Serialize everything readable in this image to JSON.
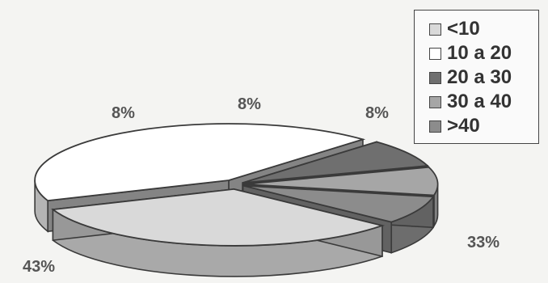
{
  "chart_data": {
    "type": "pie",
    "title": "",
    "categories": [
      "<10",
      "10 a 20",
      "20 a 30",
      "30 a 40",
      ">40"
    ],
    "values": [
      33,
      43,
      8,
      8,
      8
    ],
    "value_labels": [
      "33%",
      "43%",
      "8%",
      "8%",
      "8%"
    ],
    "colors": [
      "#d9d9d9",
      "#ffffff",
      "#6f6f6f",
      "#a6a6a6",
      "#8c8c8c"
    ],
    "legend_position": "top-right",
    "grid": false
  }
}
